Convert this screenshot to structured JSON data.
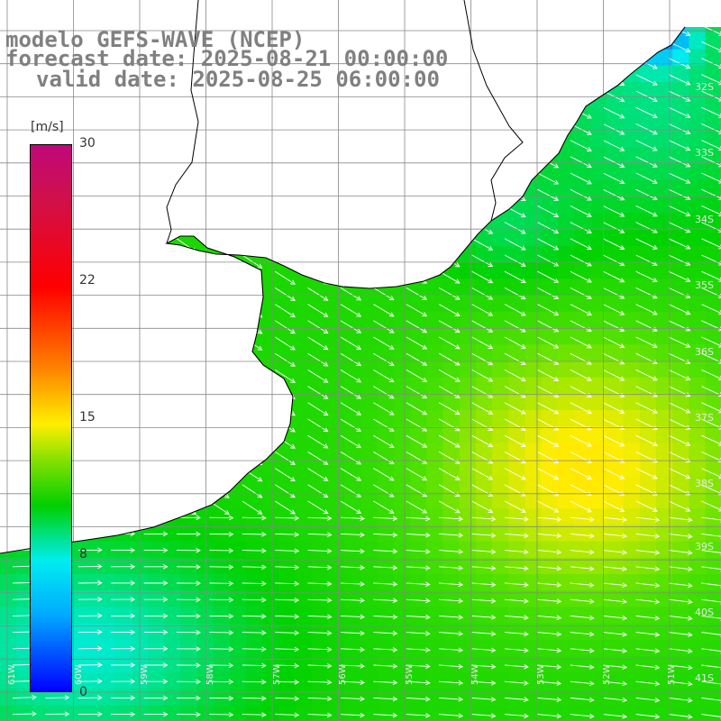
{
  "title": {
    "line1": "modelo GEFS-WAVE (NCEP)",
    "line2": "forecast date: 2025-08-21 00:00:00",
    "line3": "valid date: 2025-08-25 06:00:00"
  },
  "colorbar": {
    "unit": "[m/s]",
    "ticks": [
      "30",
      "22",
      "15",
      "8",
      "0"
    ],
    "colors": [
      "#c0087a",
      "#ff0000",
      "#ff7a00",
      "#ffee00",
      "#00d000",
      "#00eeee",
      "#0000ff"
    ]
  },
  "map": {
    "lon_range": [
      -61.5,
      -50.5
    ],
    "lat_range": [
      -41.5,
      -31
    ],
    "lat_labels": [
      "32S",
      "33S",
      "34S",
      "35S",
      "36S",
      "37S",
      "38S",
      "39S",
      "40S",
      "41S"
    ],
    "lon_labels": [
      "61W",
      "60W",
      "59W",
      "58W",
      "57W",
      "56W",
      "55W",
      "54W",
      "53W",
      "52W",
      "51W"
    ],
    "land_color": "#ffffff",
    "arrow_color": "#ffffff",
    "grid_color": "#888888"
  }
}
